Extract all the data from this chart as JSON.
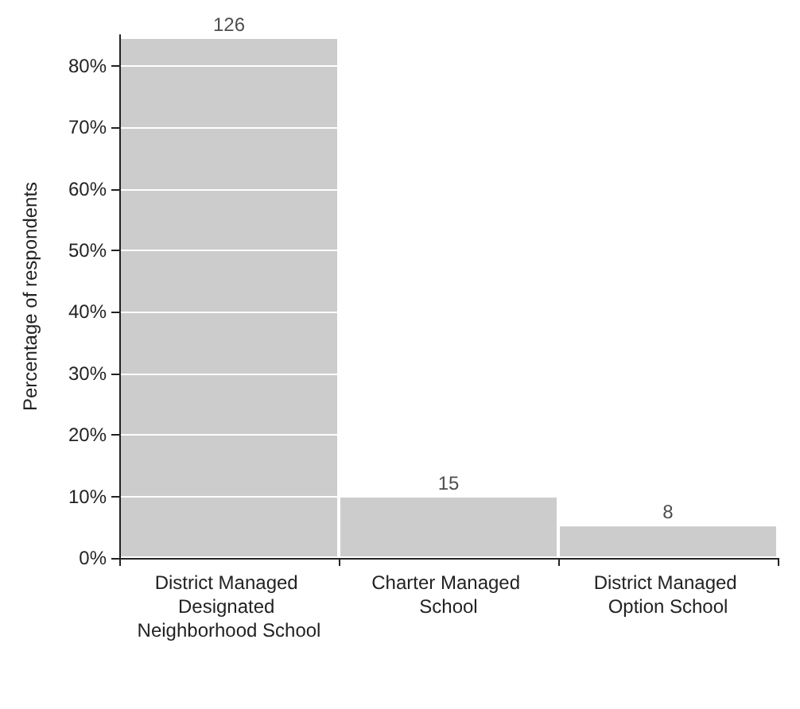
{
  "chart_data": {
    "type": "bar",
    "ylabel": "Percentage of respondents",
    "categories": [
      "District Managed Designated Neighborhood School",
      "Charter Managed School",
      "District Managed Option School"
    ],
    "values": [
      84.6,
      10.1,
      5.4
    ],
    "color": "#cccccc",
    "annotations": [
      {
        "text": "126",
        "x": "District Managed Designated Neighborhood School",
        "y": 84.6
      },
      {
        "text": "15",
        "x": "Charter Managed School",
        "y": 10.1
      },
      {
        "text": "8",
        "x": "District Managed Option School",
        "y": 5.4
      }
    ],
    "ylim": [
      0,
      85
    ],
    "yticks": [
      {
        "value": 0,
        "label": "0%"
      },
      {
        "value": 10,
        "label": "10%"
      },
      {
        "value": 20,
        "label": "20%"
      },
      {
        "value": 30,
        "label": "30%"
      },
      {
        "value": 40,
        "label": "40%"
      },
      {
        "value": 50,
        "label": "50%"
      },
      {
        "value": 60,
        "label": "60%"
      },
      {
        "value": 70,
        "label": "70%"
      },
      {
        "value": 80,
        "label": "80%"
      }
    ],
    "grid": "y"
  }
}
